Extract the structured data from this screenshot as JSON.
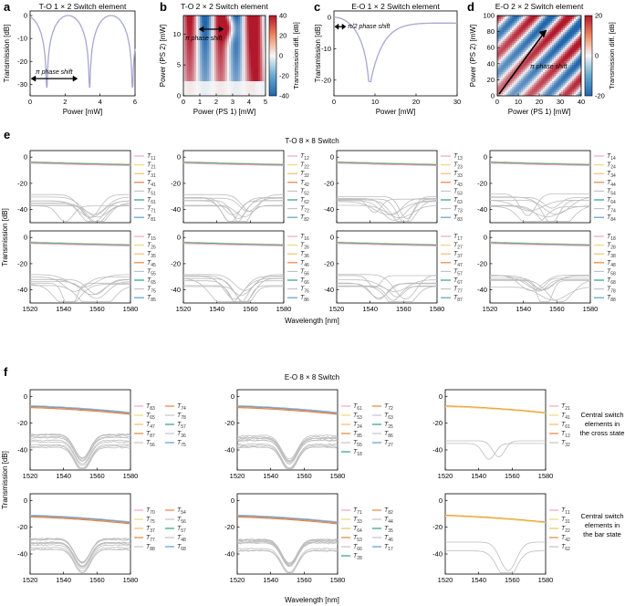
{
  "chart_data": {
    "panels_top": [
      {
        "letter": "a",
        "title": "T-O 1 × 2 Switch element",
        "type": "line",
        "xlabel": "Power [mW]",
        "ylabel": "Transmission [dB]",
        "xticks": [
          "0",
          "2",
          "4",
          "6"
        ],
        "yticks": [
          "0",
          "-10",
          "-20",
          "-30"
        ],
        "xlim": [
          0,
          6
        ],
        "ylim": [
          -35,
          2
        ],
        "annotation": "π phase shift",
        "series_color": "#a9a6d2"
      },
      {
        "letter": "b",
        "title": "T-O 2 × 2 Switch element",
        "type": "heatmap",
        "xlabel": "Power (PS 1) [mW]",
        "ylabel": "Power (PS 2) [mW]",
        "xticks": [
          "0",
          "1",
          "2",
          "3",
          "4",
          "5"
        ],
        "yticks": [
          "0",
          "5",
          "10"
        ],
        "xlim": [
          0,
          5
        ],
        "ylim": [
          0,
          13
        ],
        "annotation": "π phase shift",
        "cbar_label": "Transmission diff. [dB]",
        "cbar_ticks": [
          "40",
          "20",
          "0",
          "-20",
          "-40"
        ]
      },
      {
        "letter": "c",
        "title": "E-O 1 × 2 Switch element",
        "type": "line",
        "xlabel": "Power [mW]",
        "ylabel": "Transmission [dB]",
        "xticks": [
          "0",
          "10",
          "20",
          "30"
        ],
        "yticks": [
          "0",
          "-10",
          "-20"
        ],
        "xlim": [
          0,
          30
        ],
        "ylim": [
          -25,
          2
        ],
        "annotation": "π/2 phase shift",
        "series_color": "#a9a6d2"
      },
      {
        "letter": "d",
        "title": "E-O 2 × 2 Switch element",
        "type": "heatmap",
        "xlabel": "Power (PS 1) [mW]",
        "ylabel": "Power (PS 2) [mW]",
        "xticks": [
          "0",
          "10",
          "20",
          "30",
          "40"
        ],
        "yticks": [
          "0",
          "20",
          "40",
          "60",
          "80",
          "100"
        ],
        "xlim": [
          0,
          40
        ],
        "ylim": [
          0,
          100
        ],
        "annotation": "π phase shift",
        "cbar_label": "Transmission diff. [dB]",
        "cbar_ticks": [
          "20",
          "0",
          "-20"
        ]
      }
    ],
    "panel_e": {
      "letter": "e",
      "title": "T-O 8 × 8 Switch",
      "type": "line",
      "xlabel": "Wavelength [nm]",
      "ylabel": "Transmission [dB]",
      "xticks": [
        "1520",
        "1540",
        "1560",
        "1580"
      ],
      "yticks": [
        "0",
        "-20",
        "-40"
      ],
      "xlim": [
        1520,
        1580
      ],
      "ylim": [
        -50,
        5
      ],
      "legends": [
        [
          "11",
          "21",
          "31",
          "41",
          "51",
          "61",
          "71",
          "81"
        ],
        [
          "12",
          "22",
          "32",
          "42",
          "52",
          "62",
          "72",
          "82"
        ],
        [
          "13",
          "23",
          "33",
          "43",
          "53",
          "63",
          "73",
          "83"
        ],
        [
          "14",
          "24",
          "34",
          "44",
          "54",
          "64",
          "74",
          "84"
        ],
        [
          "15",
          "25",
          "35",
          "45",
          "55",
          "65",
          "75",
          "85"
        ],
        [
          "16",
          "26",
          "36",
          "46",
          "56",
          "66",
          "76",
          "86"
        ],
        [
          "17",
          "27",
          "37",
          "47",
          "57",
          "67",
          "77",
          "87"
        ],
        [
          "18",
          "28",
          "38",
          "48",
          "58",
          "68",
          "78",
          "88"
        ]
      ],
      "legend_colors": [
        "#f4a3c0",
        "#f2d77a",
        "#f4bd6a",
        "#e8833a",
        "#c4c4c4",
        "#2e9e8a",
        "#c4c4c4",
        "#5aa0c8"
      ]
    },
    "panel_f": {
      "letter": "f",
      "title": "E-O 8 × 8 Switch",
      "type": "line",
      "xlabel": "Wavelength [nm]",
      "ylabel": "Transmission [dB]",
      "xticks": [
        "1520",
        "1540",
        "1560",
        "1580"
      ],
      "yticks": [
        "0",
        "-20",
        "-40"
      ],
      "xlim": [
        1520,
        1580
      ],
      "ylim": [
        -55,
        5
      ],
      "row_labels": [
        "Central switch elements in the cross state",
        "Central switch elements in the bar state"
      ],
      "legends": [
        {
          "col1": [
            "83",
            "65",
            "47",
            "87",
            "56"
          ],
          "col2": [
            "74",
            "78",
            "57",
            "36",
            "75"
          ]
        },
        {
          "col1": [
            "61",
            "53",
            "24",
            "85",
            "55",
            "18"
          ],
          "col2": [
            "72",
            "63",
            "25",
            "86",
            "27"
          ]
        },
        {
          "col1": [
            "21",
            "41",
            "61",
            "12",
            "32"
          ],
          "col2": []
        },
        {
          "col1": [
            "70",
            "75",
            "37",
            "77",
            "88"
          ],
          "col2": [
            "54",
            "56",
            "57",
            "48",
            "68"
          ]
        },
        {
          "col1": [
            "71",
            "33",
            "64",
            "53",
            "66",
            "28"
          ],
          "col2": [
            "82",
            "44",
            "35",
            "46",
            "17"
          ]
        },
        {
          "col1": [
            "11",
            "31",
            "22",
            "42",
            "62"
          ],
          "col2": []
        }
      ]
    }
  }
}
